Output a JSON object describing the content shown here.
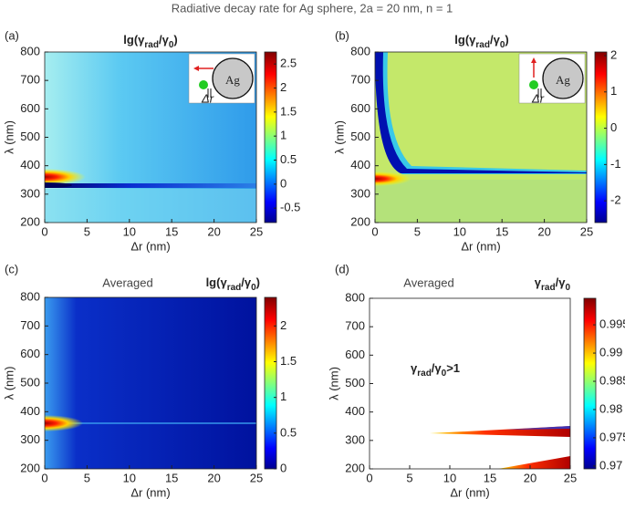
{
  "title": "Radiative decay rate for Ag sphere, 2a = 20 nm, n = 1",
  "chart_data": [
    {
      "type": "heatmap",
      "panel_label": "(a)",
      "colorbar_label": [
        "lg(γ",
        "rad",
        "/γ",
        "0",
        ")"
      ],
      "xlabel": "Δr (nm)",
      "ylabel": "λ (nm)",
      "xlim": [
        0,
        25
      ],
      "ylim": [
        200,
        800
      ],
      "xticks": [
        0,
        5,
        10,
        15,
        20,
        25
      ],
      "yticks": [
        200,
        300,
        400,
        500,
        600,
        700,
        800
      ],
      "clim": [
        -0.8,
        2.75
      ],
      "cticks": [
        -0.5,
        0,
        0.5,
        1,
        1.5,
        2,
        2.5
      ],
      "inset": {
        "sphere": "Ag",
        "gap": "Δr"
      }
    },
    {
      "type": "heatmap",
      "panel_label": "(b)",
      "colorbar_label": [
        "lg(γ",
        "rad",
        "/γ",
        "0",
        ")"
      ],
      "xlabel": "Δr (nm)",
      "ylabel": "λ (nm)",
      "xlim": [
        0,
        25
      ],
      "ylim": [
        200,
        800
      ],
      "xticks": [
        0,
        5,
        10,
        15,
        20,
        25
      ],
      "yticks": [
        200,
        300,
        400,
        500,
        600,
        700,
        800
      ],
      "clim": [
        -2.6,
        2.1
      ],
      "cticks": [
        -2,
        -1,
        0,
        1,
        2
      ],
      "inset": {
        "sphere": "Ag",
        "gap": "Δr"
      }
    },
    {
      "type": "heatmap",
      "panel_label": "(c)",
      "annotation": "Averaged",
      "colorbar_label": [
        "lg(γ",
        "rad",
        "/γ",
        "0",
        ")"
      ],
      "xlabel": "Δr (nm)",
      "ylabel": "λ (nm)",
      "xlim": [
        0,
        25
      ],
      "ylim": [
        200,
        800
      ],
      "xticks": [
        0,
        5,
        10,
        15,
        20,
        25
      ],
      "yticks": [
        200,
        300,
        400,
        500,
        600,
        700,
        800
      ],
      "clim": [
        0,
        2.4
      ],
      "cticks": [
        0,
        0.5,
        1,
        1.5,
        2
      ]
    },
    {
      "type": "heatmap",
      "panel_label": "(d)",
      "annotation": "Averaged",
      "colorbar_label": [
        "γ",
        "rad",
        "/γ",
        "0"
      ],
      "region_label": [
        "γ",
        "rad",
        "/γ",
        "0",
        ">1"
      ],
      "xlabel": "Δr (nm)",
      "ylabel": "λ (nm)",
      "xlim": [
        0,
        25
      ],
      "ylim": [
        200,
        800
      ],
      "xticks": [
        0,
        5,
        10,
        15,
        20,
        25
      ],
      "yticks": [
        200,
        300,
        400,
        500,
        600,
        700,
        800
      ],
      "clim": [
        0.9695,
        0.9997
      ],
      "cticks": [
        0.97,
        0.975,
        0.98,
        0.985,
        0.99,
        0.995
      ]
    }
  ]
}
